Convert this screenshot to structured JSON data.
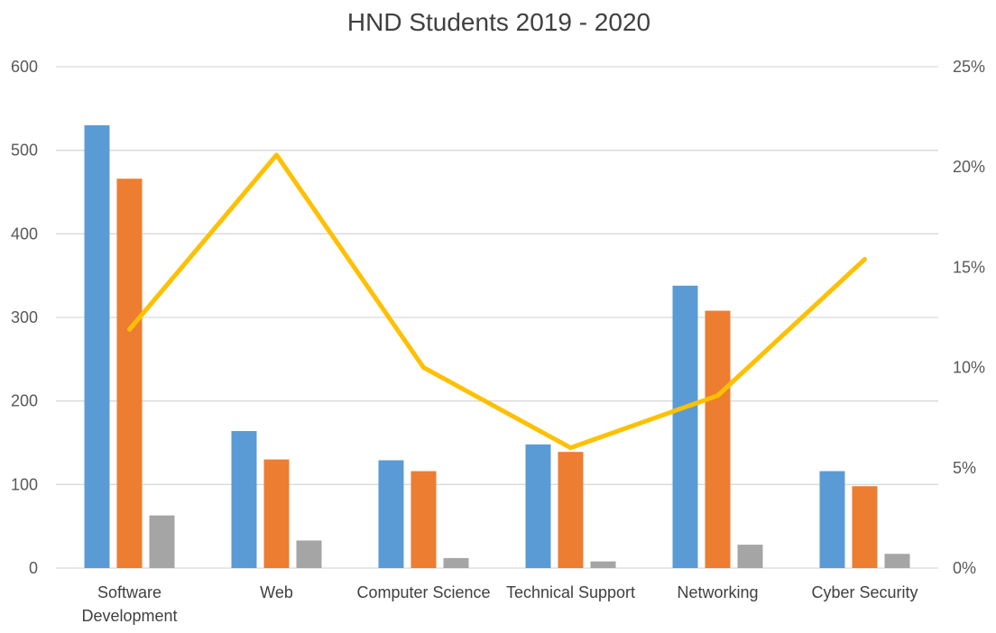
{
  "chart_data": {
    "type": "bar",
    "title": "HND Students 2019 - 2020",
    "xlabel": "",
    "ylabel": "",
    "categories": [
      [
        "Software",
        "Development"
      ],
      [
        "Web"
      ],
      [
        "Computer Science"
      ],
      [
        "Technical Support"
      ],
      [
        "Networking"
      ],
      [
        "Cyber Security"
      ]
    ],
    "ylim": [
      0,
      600
    ],
    "yticks": [
      "0",
      "100",
      "200",
      "300",
      "400",
      "500",
      "600"
    ],
    "y2lim": [
      0,
      0.25
    ],
    "y2ticks": [
      "0%",
      "5%",
      "10%",
      "15%",
      "20%",
      "25%"
    ],
    "grid": true,
    "series": [
      {
        "kind": "bar",
        "color": "#5b9bd5",
        "values": [
          530,
          164,
          129,
          148,
          338,
          116
        ]
      },
      {
        "kind": "bar",
        "color": "#ed7d31",
        "values": [
          466,
          130,
          116,
          139,
          308,
          98
        ]
      },
      {
        "kind": "bar",
        "color": "#a5a5a5",
        "values": [
          63,
          33,
          12,
          8,
          28,
          17
        ]
      },
      {
        "kind": "line",
        "axis": "right",
        "color": "#ffc000",
        "values": [
          0.119,
          0.206,
          0.1,
          0.06,
          0.086,
          0.154
        ]
      }
    ]
  }
}
